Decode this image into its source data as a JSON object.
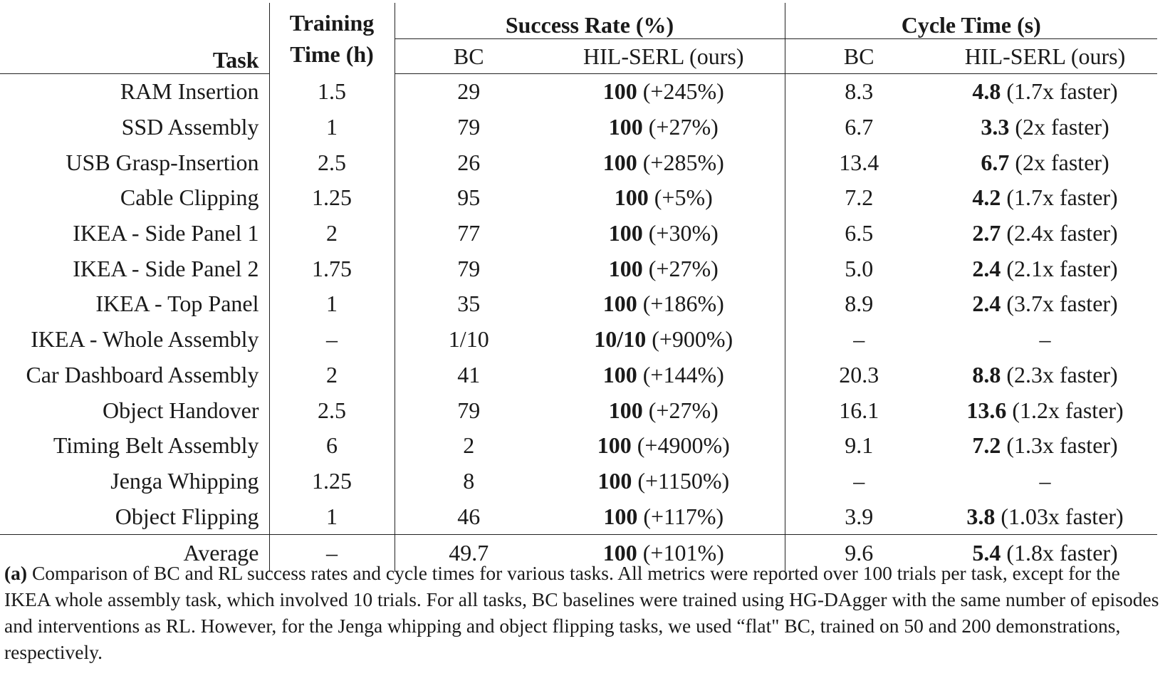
{
  "header": {
    "task": "Task",
    "training_time_line1": "Training",
    "training_time_line2": "Time (h)",
    "success_rate": "Success Rate (%)",
    "cycle_time": "Cycle Time (s)",
    "bc": "BC",
    "hil_serl": "HIL-SERL (ours)"
  },
  "rows": [
    {
      "task": "RAM Insertion",
      "time": "1.5",
      "bc_sr": "29",
      "hil_sr": "100",
      "hil_sr_note": " (+245%)",
      "bc_ct": "8.3",
      "hil_ct": "4.8",
      "hil_ct_note": " (1.7x faster)"
    },
    {
      "task": "SSD Assembly",
      "time": "1",
      "bc_sr": "79",
      "hil_sr": "100",
      "hil_sr_note": " (+27%)",
      "bc_ct": "6.7",
      "hil_ct": "3.3",
      "hil_ct_note": " (2x faster)"
    },
    {
      "task": "USB Grasp-Insertion",
      "time": "2.5",
      "bc_sr": "26",
      "hil_sr": "100",
      "hil_sr_note": " (+285%)",
      "bc_ct": "13.4",
      "hil_ct": "6.7",
      "hil_ct_note": " (2x faster)"
    },
    {
      "task": "Cable Clipping",
      "time": "1.25",
      "bc_sr": "95",
      "hil_sr": "100",
      "hil_sr_note": " (+5%)",
      "bc_ct": "7.2",
      "hil_ct": "4.2",
      "hil_ct_note": " (1.7x faster)"
    },
    {
      "task": "IKEA - Side Panel 1",
      "time": "2",
      "bc_sr": "77",
      "hil_sr": "100",
      "hil_sr_note": " (+30%)",
      "bc_ct": "6.5",
      "hil_ct": "2.7",
      "hil_ct_note": " (2.4x faster)"
    },
    {
      "task": "IKEA - Side Panel 2",
      "time": "1.75",
      "bc_sr": "79",
      "hil_sr": "100",
      "hil_sr_note": " (+27%)",
      "bc_ct": "5.0",
      "hil_ct": "2.4",
      "hil_ct_note": " (2.1x faster)"
    },
    {
      "task": "IKEA - Top Panel",
      "time": "1",
      "bc_sr": "35",
      "hil_sr": "100",
      "hil_sr_note": " (+186%)",
      "bc_ct": "8.9",
      "hil_ct": "2.4",
      "hil_ct_note": " (3.7x faster)"
    },
    {
      "task": "IKEA - Whole Assembly",
      "time": "–",
      "bc_sr": "1/10",
      "hil_sr": "10/10",
      "hil_sr_note": " (+900%)",
      "bc_ct": "–",
      "hil_ct": "",
      "hil_ct_note": "–"
    },
    {
      "task": "Car Dashboard Assembly",
      "time": "2",
      "bc_sr": "41",
      "hil_sr": "100",
      "hil_sr_note": " (+144%)",
      "bc_ct": "20.3",
      "hil_ct": "8.8",
      "hil_ct_note": " (2.3x faster)"
    },
    {
      "task": "Object Handover",
      "time": "2.5",
      "bc_sr": "79",
      "hil_sr": "100",
      "hil_sr_note": " (+27%)",
      "bc_ct": "16.1",
      "hil_ct": "13.6",
      "hil_ct_note": " (1.2x faster)"
    },
    {
      "task": "Timing Belt Assembly",
      "time": "6",
      "bc_sr": "2",
      "hil_sr": "100",
      "hil_sr_note": " (+4900%)",
      "bc_ct": "9.1",
      "hil_ct": "7.2",
      "hil_ct_note": " (1.3x faster)"
    },
    {
      "task": "Jenga Whipping",
      "time": "1.25",
      "bc_sr": "8",
      "hil_sr": "100",
      "hil_sr_note": " (+1150%)",
      "bc_ct": "–",
      "hil_ct": "",
      "hil_ct_note": "–"
    },
    {
      "task": "Object Flipping",
      "time": "1",
      "bc_sr": "46",
      "hil_sr": "100",
      "hil_sr_note": " (+117%)",
      "bc_ct": "3.9",
      "hil_ct": "3.8",
      "hil_ct_note": " (1.03x faster)"
    }
  ],
  "average": {
    "task": "Average",
    "time": "–",
    "bc_sr": "49.7",
    "hil_sr": "100",
    "hil_sr_note": " (+101%)",
    "bc_ct": "9.6",
    "hil_ct": "5.4",
    "hil_ct_note": " (1.8x faster)"
  },
  "caption": {
    "label": "(a)",
    "text": " Comparison of BC and RL success rates and cycle times for various tasks. All metrics were reported over 100 trials per task, except for the IKEA whole assembly task, which involved 10 trials. For all tasks, BC baselines were trained using HG-DAgger with the same number of episodes and interventions as RL. However, for the Jenga whipping and object flipping tasks, we used “flat\" BC, trained on 50 and 200 demonstrations, respectively."
  }
}
